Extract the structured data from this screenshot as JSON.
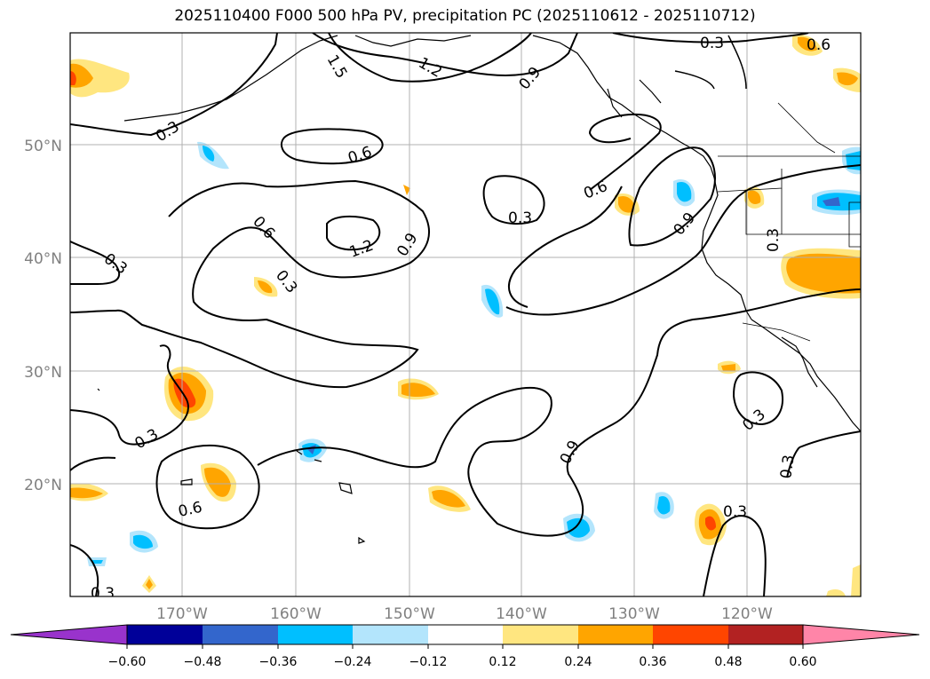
{
  "title": "2025110400 F000 500 hPa PV, precipitation PC (2025110612 - 2025110712)",
  "map": {
    "lon_labels": [
      "170°W",
      "160°W",
      "150°W",
      "140°W",
      "130°W",
      "120°W"
    ],
    "lat_labels": [
      "50°N",
      "40°N",
      "30°N",
      "20°N"
    ],
    "graticule_color": "#b0b0b0",
    "axis_label_color": "#808080",
    "contour_levels": [
      "0.3",
      "0.6",
      "0.9",
      "1.2",
      "1.5"
    ],
    "contour_labels": [
      "0.3",
      "0.6",
      "0.9",
      "1.2",
      "1.5",
      "0.3",
      "0.6",
      "0.3",
      "0.3",
      "0.9",
      "1.2",
      "0.9",
      "0.6",
      "0.3",
      "0.6",
      "0.9",
      "0.3",
      "0.3",
      "0.3",
      "0.3",
      "0.3",
      "0.6",
      "0.3",
      "0.3",
      "0.3",
      "0.3"
    ]
  },
  "colorbar": {
    "tick_labels": [
      "−0.60",
      "−0.48",
      "−0.36",
      "−0.24",
      "−0.12",
      "0.12",
      "0.24",
      "0.36",
      "0.48",
      "0.60"
    ],
    "colors": [
      "#9933cc",
      "#000099",
      "#3366cc",
      "#00bfff",
      "#b3e5fc",
      "#ffffff",
      "#ffe680",
      "#ffa500",
      "#ff4500",
      "#b22222",
      "#ff85a8"
    ]
  }
}
